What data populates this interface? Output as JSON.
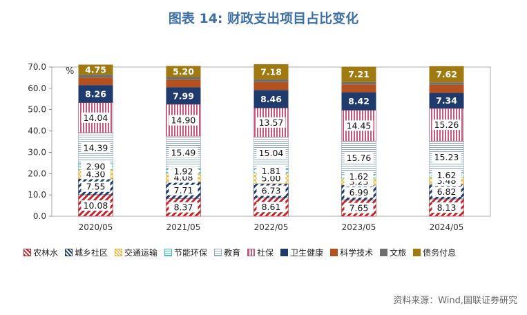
{
  "header": {
    "title": "图表 14: 财政支出项目占比变化"
  },
  "footer": {
    "source": "资料来源：Wind,国联证券研究"
  },
  "chart_data": {
    "type": "bar",
    "stacked": true,
    "unit_label": "%",
    "categories": [
      "2020/05",
      "2021/05",
      "2022/05",
      "2023/05",
      "2024/05"
    ],
    "ylim": [
      0,
      70
    ],
    "yticks": [
      "0.0",
      "10.0",
      "20.0",
      "30.0",
      "40.0",
      "50.0",
      "60.0",
      "70.0"
    ],
    "series": [
      {
        "name": "农林水",
        "values": [
          10.08,
          8.37,
          8.61,
          7.65,
          8.13
        ],
        "color": "#c0262b",
        "pattern": "diag-red",
        "show_labels": true
      },
      {
        "name": "城乡社区",
        "values": [
          7.55,
          7.71,
          6.73,
          6.99,
          6.82
        ],
        "color": "#1f3b6e",
        "pattern": "diag-navy",
        "show_labels": true
      },
      {
        "name": "交通运输",
        "values": [
          4.3,
          4.08,
          5.0,
          3.25,
          3.48
        ],
        "color": "#e3b23c",
        "pattern": "cross-gold",
        "show_labels": true
      },
      {
        "name": "节能环保",
        "values": [
          2.9,
          1.92,
          1.81,
          1.62,
          1.62
        ],
        "color": "#3fbfbf",
        "pattern": "dash-teal",
        "show_labels": true
      },
      {
        "name": "教育",
        "values": [
          14.39,
          15.49,
          15.04,
          15.76,
          15.23
        ],
        "color": "#8fa8c8",
        "pattern": "hlines-blue",
        "show_labels": true
      },
      {
        "name": "社保",
        "values": [
          14.04,
          14.9,
          13.57,
          14.45,
          15.26
        ],
        "color": "#c9577a",
        "pattern": "vlines-pink",
        "show_labels": true
      },
      {
        "name": "卫生健康",
        "values": [
          8.26,
          7.99,
          8.46,
          8.42,
          7.34
        ],
        "color": "#1f3b6e",
        "pattern": "solid",
        "show_labels": true
      },
      {
        "name": "科学技术",
        "values": [
          3.56,
          3.62,
          3.72,
          3.68,
          3.73
        ],
        "color": "#b5501f",
        "pattern": "solid",
        "show_labels": false
      },
      {
        "name": "文旅",
        "values": [
          1.3,
          1.21,
          1.2,
          1.12,
          1.16
        ],
        "color": "#6e6e6e",
        "pattern": "solid",
        "show_labels": false
      },
      {
        "name": "债务付息",
        "values": [
          4.75,
          5.2,
          7.18,
          7.21,
          7.62
        ],
        "color": "#a07a10",
        "pattern": "solid",
        "show_labels": true
      }
    ]
  }
}
